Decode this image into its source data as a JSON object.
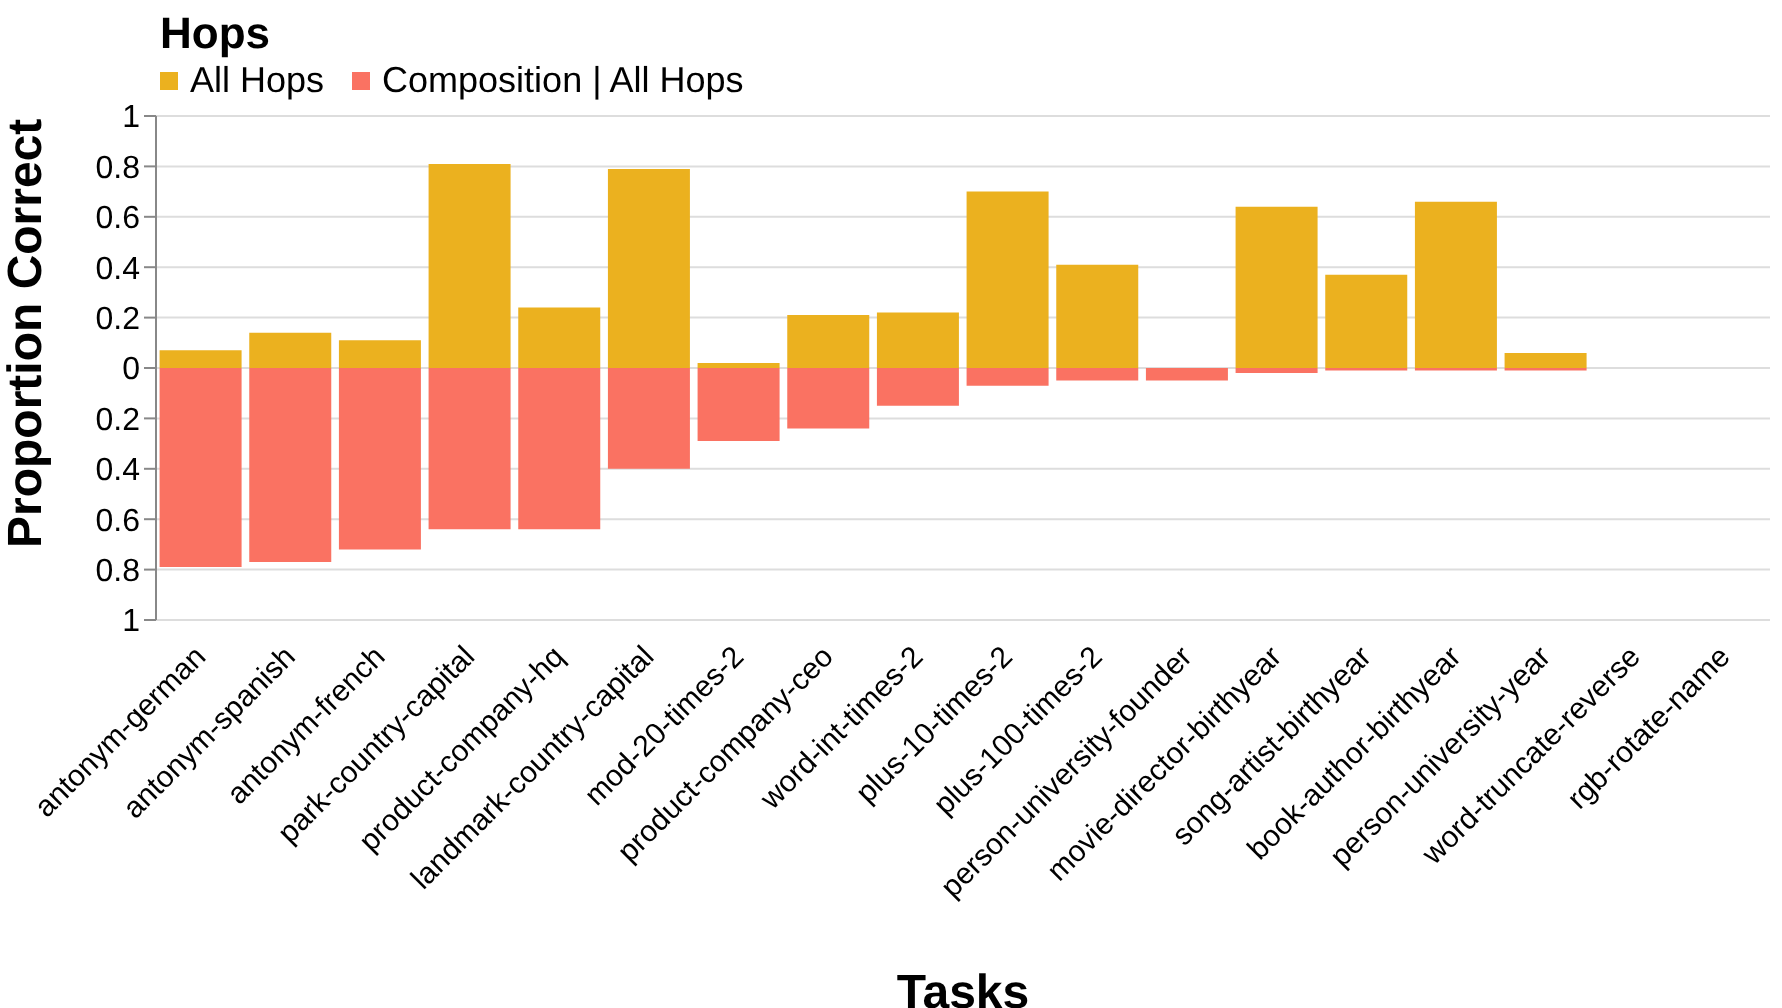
{
  "chart_data": {
    "type": "bar",
    "stacked": true,
    "legend_title": "Hops",
    "xlabel": "Tasks",
    "ylabel": "Proportion Correct",
    "categories": [
      "antonym-german",
      "antonym-spanish",
      "antonym-french",
      "park-country-capital",
      "product-company-hq",
      "landmark-country-capital",
      "mod-20-times-2",
      "product-company-ceo",
      "word-int-times-2",
      "plus-10-times-2",
      "plus-100-times-2",
      "person-university-founder",
      "movie-director-birthyear",
      "song-artist-birthyear",
      "book-author-birthyear",
      "person-university-year",
      "word-truncate-reverse",
      "rgb-rotate-name"
    ],
    "series": [
      {
        "name": "All Hops",
        "color": "#ebb11f",
        "values": [
          0.07,
          0.14,
          0.11,
          0.81,
          0.24,
          0.79,
          0.02,
          0.21,
          0.22,
          0.7,
          0.41,
          0,
          0.64,
          0.37,
          0.66,
          0.06,
          0,
          0
        ]
      },
      {
        "name": "Composition | All Hops",
        "color": "#fa7262",
        "values": [
          -0.79,
          -0.77,
          -0.72,
          -0.64,
          -0.64,
          -0.4,
          -0.29,
          -0.24,
          -0.15,
          -0.07,
          -0.05,
          -0.05,
          -0.02,
          -0.01,
          -0.01,
          -0.01,
          0,
          0
        ]
      }
    ],
    "ylim": [
      -1,
      1
    ],
    "yticks": [
      {
        "value": -1,
        "label": "1"
      },
      {
        "value": -0.8,
        "label": "0.8"
      },
      {
        "value": -0.6,
        "label": "0.6"
      },
      {
        "value": -0.4,
        "label": "0.4"
      },
      {
        "value": -0.2,
        "label": "0.2"
      },
      0,
      0.2,
      0.4,
      0.6,
      0.8,
      1
    ],
    "grid": "y",
    "legend": "top left"
  }
}
